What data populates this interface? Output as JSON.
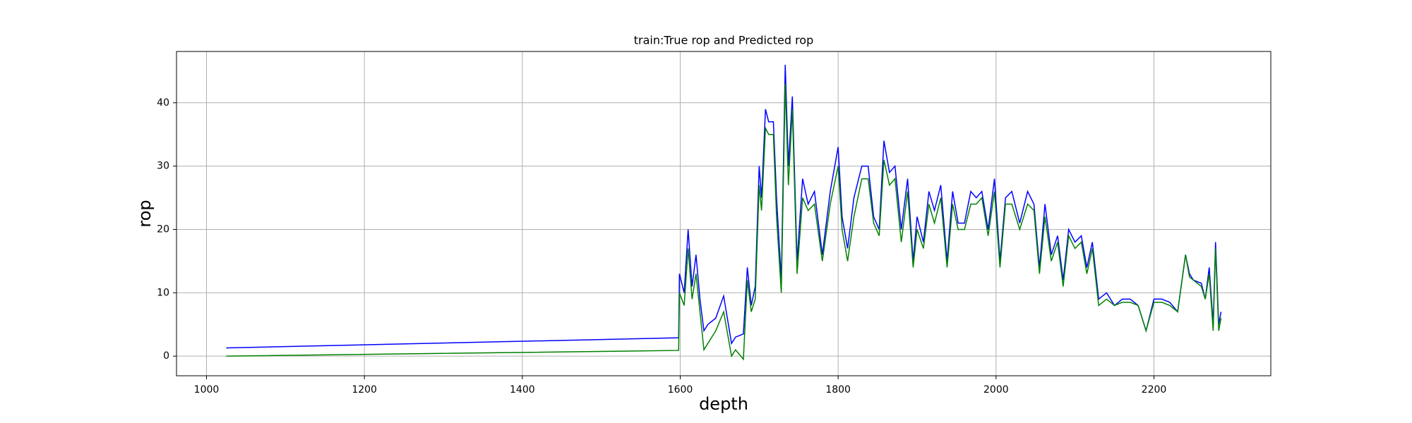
{
  "chart_data": {
    "type": "line",
    "title": "train:True rop and Predicted rop",
    "x_label": "depth",
    "y_label": "rop",
    "x": [
      1025,
      1598,
      1599,
      1605,
      1610,
      1615,
      1620,
      1625,
      1630,
      1635,
      1645,
      1655,
      1665,
      1670,
      1680,
      1685,
      1690,
      1695,
      1700,
      1703,
      1708,
      1712,
      1718,
      1722,
      1728,
      1733,
      1737,
      1742,
      1748,
      1755,
      1762,
      1770,
      1780,
      1790,
      1800,
      1805,
      1812,
      1820,
      1830,
      1838,
      1845,
      1852,
      1858,
      1865,
      1872,
      1880,
      1888,
      1895,
      1900,
      1908,
      1915,
      1922,
      1930,
      1938,
      1945,
      1952,
      1960,
      1968,
      1975,
      1982,
      1990,
      1998,
      2005,
      2012,
      2020,
      2030,
      2040,
      2048,
      2055,
      2062,
      2070,
      2078,
      2085,
      2092,
      2100,
      2108,
      2115,
      2122,
      2130,
      2140,
      2150,
      2160,
      2170,
      2180,
      2190,
      2200,
      2210,
      2220,
      2230,
      2240,
      2245,
      2250,
      2260,
      2265,
      2270,
      2275,
      2278,
      2282,
      2285
    ],
    "series": [
      {
        "color": "#0000ff",
        "values": [
          1.3,
          2.9,
          13,
          10,
          20,
          11,
          16,
          9,
          4,
          5,
          6,
          9.5,
          2,
          3,
          3.5,
          14,
          8,
          11,
          30,
          25,
          39,
          37,
          37,
          25,
          12,
          46,
          30,
          41,
          15,
          28,
          24,
          26,
          16,
          26,
          33,
          22,
          17,
          25,
          30,
          30,
          22,
          20,
          34,
          29,
          30,
          20,
          28,
          15,
          22,
          18,
          26,
          23,
          27,
          15,
          26,
          21,
          21,
          26,
          25,
          26,
          20,
          28,
          15,
          25,
          26,
          21,
          26,
          24,
          14,
          24,
          16,
          19,
          12,
          20,
          18,
          19,
          14,
          18,
          9,
          10,
          8,
          9,
          9,
          8,
          4,
          9,
          9,
          8.5,
          7,
          16,
          13,
          12,
          11.5,
          9,
          14,
          5,
          18,
          5,
          7
        ]
      },
      {
        "color": "#008000",
        "values": [
          0,
          0.9,
          10,
          8,
          17,
          9,
          13,
          7,
          1,
          2,
          4,
          7,
          0,
          1,
          -0.5,
          12,
          7,
          9,
          27,
          23,
          36,
          35,
          35,
          22,
          10,
          43,
          27,
          39,
          13,
          25,
          23,
          24,
          15,
          24,
          30,
          20,
          15,
          22,
          28,
          28,
          21,
          19,
          31,
          27,
          28,
          18,
          26,
          14,
          20,
          17,
          24,
          21,
          25,
          14,
          24,
          20,
          20,
          24,
          24,
          25,
          19,
          26,
          14,
          24,
          24,
          20,
          24,
          23,
          13,
          22,
          15,
          18,
          11,
          19,
          17,
          18,
          13,
          17,
          8,
          9,
          8,
          8.5,
          8.5,
          8,
          4,
          8.5,
          8.5,
          8,
          7,
          16,
          12.5,
          12,
          11,
          9,
          13,
          4,
          17,
          4,
          6
        ]
      }
    ],
    "xlim": [
      962,
      2348
    ],
    "xticks": [
      1000,
      1200,
      1400,
      1600,
      1800,
      2000,
      2200
    ],
    "ylim": [
      -3.1,
      48.1
    ],
    "yticks": [
      0,
      10,
      20,
      30,
      40
    ],
    "grid": true
  }
}
